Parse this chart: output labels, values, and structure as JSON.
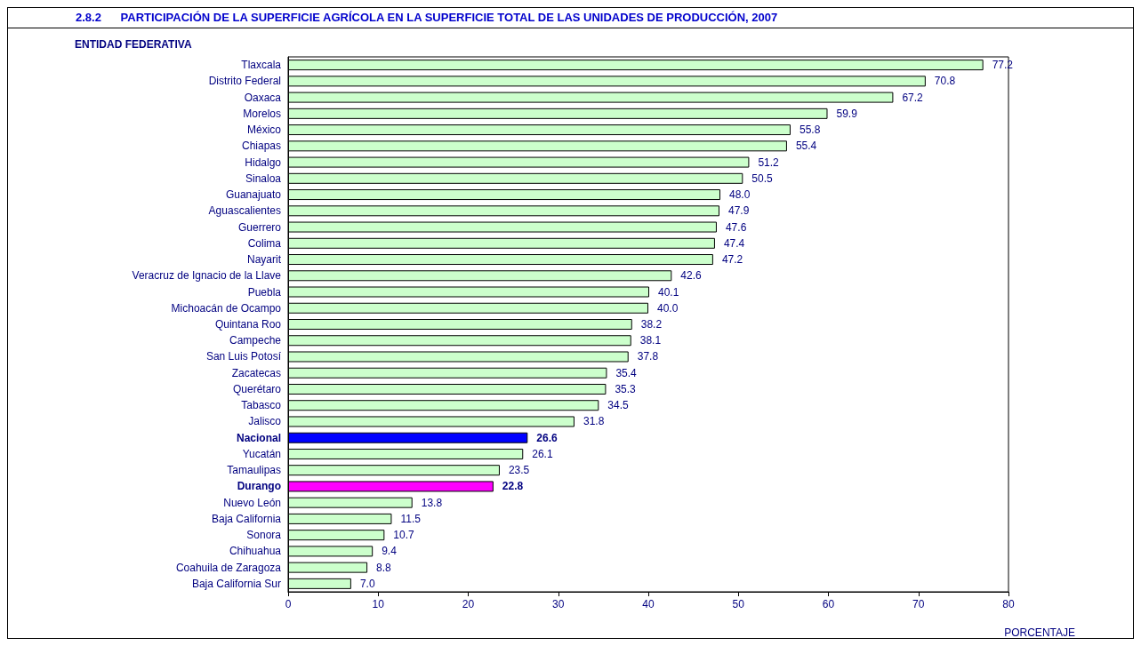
{
  "chart_data": {
    "type": "bar",
    "orientation": "horizontal",
    "title": "2.8.2      PARTICIPACIÓN DE LA SUPERFICIE AGRÍCOLA EN LA SUPERFICIE TOTAL DE LAS UNIDADES DE PRODUCCIÓN, 2007",
    "ylabel": "ENTIDAD FEDERATIVA",
    "xlabel": "PORCENTAJE",
    "categories": [
      "Tlaxcala",
      "Distrito Federal",
      "Oaxaca",
      "Morelos",
      "México",
      "Chiapas",
      "Hidalgo",
      "Sinaloa",
      "Guanajuato",
      "Aguascalientes",
      "Guerrero",
      "Colima",
      "Nayarit",
      "Veracruz de Ignacio de la Llave",
      "Puebla",
      "Michoacán de Ocampo",
      "Quintana Roo",
      "Campeche",
      "San Luis Potosí",
      "Zacatecas",
      "Querétaro",
      "Tabasco",
      "Jalisco",
      "Nacional",
      "Yucatán",
      "Tamaulipas",
      "Durango",
      "Nuevo León",
      "Baja California",
      "Sonora",
      "Chihuahua",
      "Coahuila de Zaragoza",
      "Baja California Sur"
    ],
    "values": [
      77.2,
      70.8,
      67.2,
      59.9,
      55.8,
      55.4,
      51.2,
      50.5,
      48.0,
      47.9,
      47.6,
      47.4,
      47.2,
      42.6,
      40.1,
      40.0,
      38.2,
      38.1,
      37.8,
      35.4,
      35.3,
      34.5,
      31.8,
      26.6,
      26.1,
      23.5,
      22.8,
      13.8,
      11.5,
      10.7,
      9.4,
      8.8,
      7.0
    ],
    "value_labels": [
      "77.2",
      "70.8",
      "67.2",
      "59.9",
      "55.8",
      "55.4",
      "51.2",
      "50.5",
      "48.0",
      "47.9",
      "47.6",
      "47.4",
      "47.2",
      "42.6",
      "40.1",
      "40.0",
      "38.2",
      "38.1",
      "37.8",
      "35.4",
      "35.3",
      "34.5",
      "31.8",
      "26.6",
      "26.1",
      "23.5",
      "22.8",
      "13.8",
      "11.5",
      "10.7",
      "9.4",
      "8.8",
      "7.0"
    ],
    "colors": [
      "#ccffcc",
      "#ccffcc",
      "#ccffcc",
      "#ccffcc",
      "#ccffcc",
      "#ccffcc",
      "#ccffcc",
      "#ccffcc",
      "#ccffcc",
      "#ccffcc",
      "#ccffcc",
      "#ccffcc",
      "#ccffcc",
      "#ccffcc",
      "#ccffcc",
      "#ccffcc",
      "#ccffcc",
      "#ccffcc",
      "#ccffcc",
      "#ccffcc",
      "#ccffcc",
      "#ccffcc",
      "#ccffcc",
      "#0000ff",
      "#ccffcc",
      "#ccffcc",
      "#ff00ff",
      "#ccffcc",
      "#ccffcc",
      "#ccffcc",
      "#ccffcc",
      "#ccffcc",
      "#ccffcc"
    ],
    "xlim": [
      0,
      80
    ],
    "xticks": [
      0,
      10,
      20,
      30,
      40,
      50,
      60,
      70,
      80
    ],
    "grid": false
  }
}
